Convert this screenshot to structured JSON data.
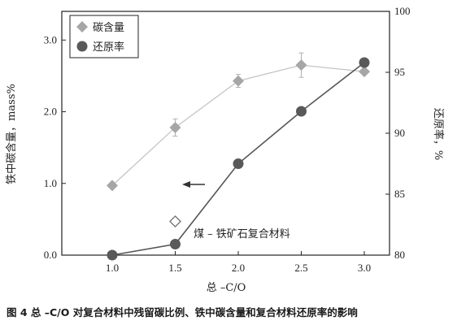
{
  "caption": "图 4  总 –C/O 对复合材料中残留碳比例、铁中碳含量和复合材料还原率的影响",
  "chart_data": {
    "type": "line",
    "x": [
      1.0,
      1.5,
      2.0,
      2.5,
      3.0
    ],
    "xlabel": "总 –C/O",
    "ylabel_left": "铁中碳含量，mass%",
    "ylabel_right": "还原率，%",
    "xlim": [
      0.6,
      3.2
    ],
    "ylim_left": [
      0,
      3.4
    ],
    "ylim_right": [
      80,
      100
    ],
    "xticks": [
      "1.0",
      "1.5",
      "2.0",
      "2.5",
      "3.0"
    ],
    "yticks_left": [
      "0.0",
      "1.0",
      "2.0",
      "3.0"
    ],
    "yticks_right": [
      "80",
      "85",
      "90",
      "95",
      "100"
    ],
    "grid": false,
    "legend_position": "top-left",
    "annotation": "煤 – 铁矿石复合材料",
    "series": [
      {
        "name": "碳含量",
        "axis": "left",
        "marker": "diamond",
        "color": "#a6a6a6",
        "values": [
          0.97,
          1.78,
          2.43,
          2.65,
          2.56
        ],
        "error": [
          0,
          0.12,
          0.09,
          0.17,
          0
        ]
      },
      {
        "name": "还原率",
        "axis": "right",
        "marker": "circle",
        "color": "#595959",
        "values": [
          80.0,
          80.9,
          87.5,
          91.8,
          95.8
        ]
      }
    ],
    "extra_points": [
      {
        "x": 1.5,
        "y_left": 0.47,
        "marker": "open-diamond"
      }
    ]
  }
}
